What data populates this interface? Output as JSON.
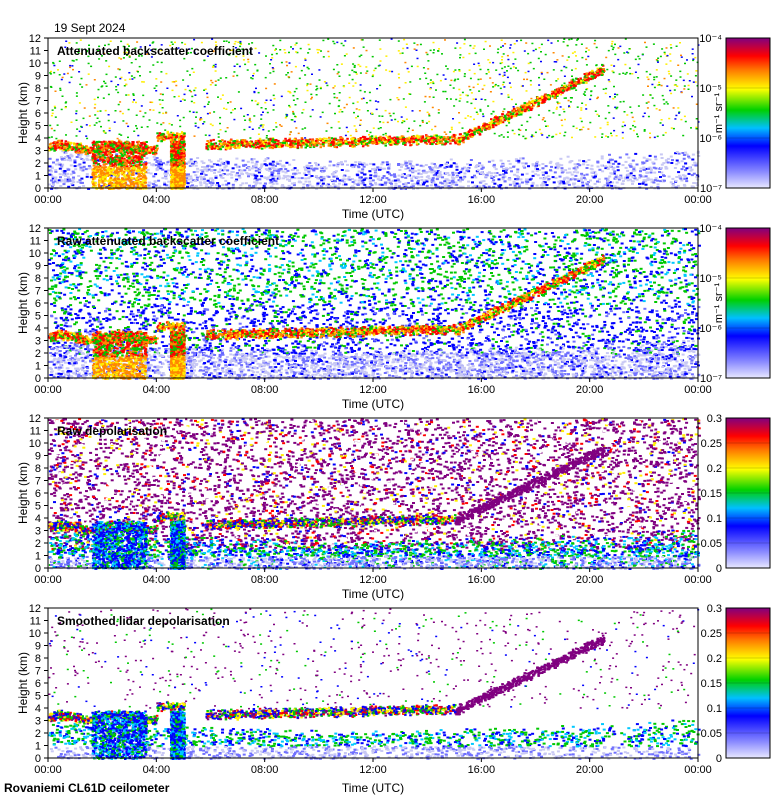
{
  "date_label": "19 Sept 2024",
  "footer": "Rovaniemi CL61D ceilometer",
  "colors": {
    "scale": [
      "#d8d8f8",
      "#0000ff",
      "#00d000",
      "#ffff00",
      "#ff8000",
      "#ff0000",
      "#800080"
    ],
    "depol_high": "#800080"
  },
  "chart_data": [
    {
      "type": "heatmap",
      "title": "Attenuated backscatter coefficient",
      "xlabel": "Time (UTC)",
      "ylabel": "Height (km)",
      "x_ticks": [
        "00:00",
        "04:00",
        "08:00",
        "12:00",
        "16:00",
        "20:00",
        "00:00"
      ],
      "y_ticks": [
        "0",
        "1",
        "2",
        "3",
        "4",
        "5",
        "6",
        "7",
        "8",
        "9",
        "10",
        "11",
        "12"
      ],
      "ylim": [
        0,
        12
      ],
      "colorbar": {
        "scale": "log",
        "ticks": [
          "10⁻⁴",
          "10⁻⁵",
          "10⁻⁶",
          "10⁻⁷"
        ],
        "label": "m⁻¹ sr⁻¹"
      }
    },
    {
      "type": "heatmap",
      "title": "Raw attenuated backscatter coefficient",
      "xlabel": "Time (UTC)",
      "ylabel": "Height (km)",
      "x_ticks": [
        "00:00",
        "04:00",
        "08:00",
        "12:00",
        "16:00",
        "20:00",
        "00:00"
      ],
      "y_ticks": [
        "0",
        "1",
        "2",
        "3",
        "4",
        "5",
        "6",
        "7",
        "8",
        "9",
        "10",
        "11",
        "12"
      ],
      "ylim": [
        0,
        12
      ],
      "colorbar": {
        "scale": "log",
        "ticks": [
          "10⁻⁴",
          "10⁻⁵",
          "10⁻⁶",
          "10⁻⁷"
        ],
        "label": "m⁻¹ sr⁻¹"
      }
    },
    {
      "type": "heatmap",
      "title": "Raw depolarisation",
      "xlabel": "Time (UTC)",
      "ylabel": "Height (km)",
      "x_ticks": [
        "00:00",
        "04:00",
        "08:00",
        "12:00",
        "16:00",
        "20:00",
        "00:00"
      ],
      "y_ticks": [
        "0",
        "1",
        "2",
        "3",
        "4",
        "5",
        "6",
        "7",
        "8",
        "9",
        "10",
        "11",
        "12"
      ],
      "ylim": [
        0,
        12
      ],
      "colorbar": {
        "scale": "linear",
        "ticks": [
          "0.3",
          "0.25",
          "0.2",
          "0.15",
          "0.1",
          "0.05",
          "0"
        ],
        "label": ""
      }
    },
    {
      "type": "heatmap",
      "title": "Smoothed lidar depolarisation",
      "xlabel": "Time (UTC)",
      "ylabel": "Height (km)",
      "x_ticks": [
        "00:00",
        "04:00",
        "08:00",
        "12:00",
        "16:00",
        "20:00",
        "00:00"
      ],
      "y_ticks": [
        "0",
        "1",
        "2",
        "3",
        "4",
        "5",
        "6",
        "7",
        "8",
        "9",
        "10",
        "11",
        "12"
      ],
      "ylim": [
        0,
        12
      ],
      "colorbar": {
        "scale": "linear",
        "ticks": [
          "0.3",
          "0.25",
          "0.2",
          "0.15",
          "0.1",
          "0.05",
          "0"
        ],
        "label": ""
      }
    }
  ]
}
